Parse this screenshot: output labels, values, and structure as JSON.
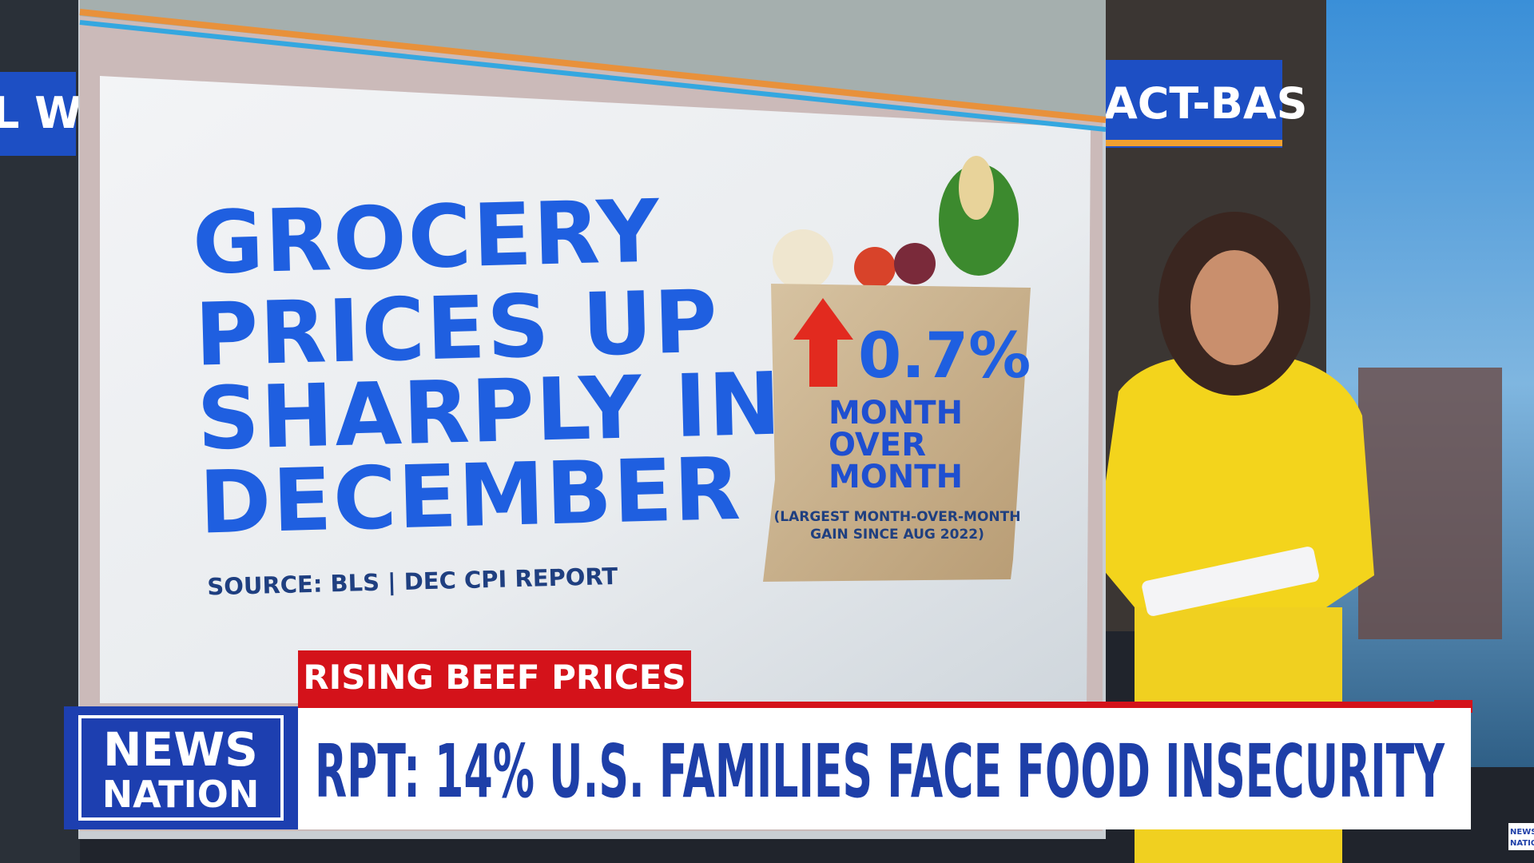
{
  "background_signs": [
    "L WA",
    "ACT-BAS"
  ],
  "graphic": {
    "headline_lines": [
      "GROCERY",
      "PRICES UP",
      "SHARPLY IN",
      "DECEMBER"
    ],
    "source": "SOURCE: BLS | DEC CPI REPORT",
    "stat": "0.7%",
    "stat_caption_lines": [
      "MONTH",
      "OVER",
      "MONTH"
    ],
    "note_lines": [
      "(LARGEST MONTH-OVER-MONTH",
      "GAIN SINCE AUG 2022)"
    ]
  },
  "lower_third": {
    "tag": "RISING BEEF PRICES",
    "logo_lines": [
      "NEWS",
      "NATION"
    ],
    "headline": "RPT: 14% U.S. FAMILIES FACE FOOD INSECURITY"
  },
  "corner_bug": [
    "NEWS",
    "NATION"
  ]
}
